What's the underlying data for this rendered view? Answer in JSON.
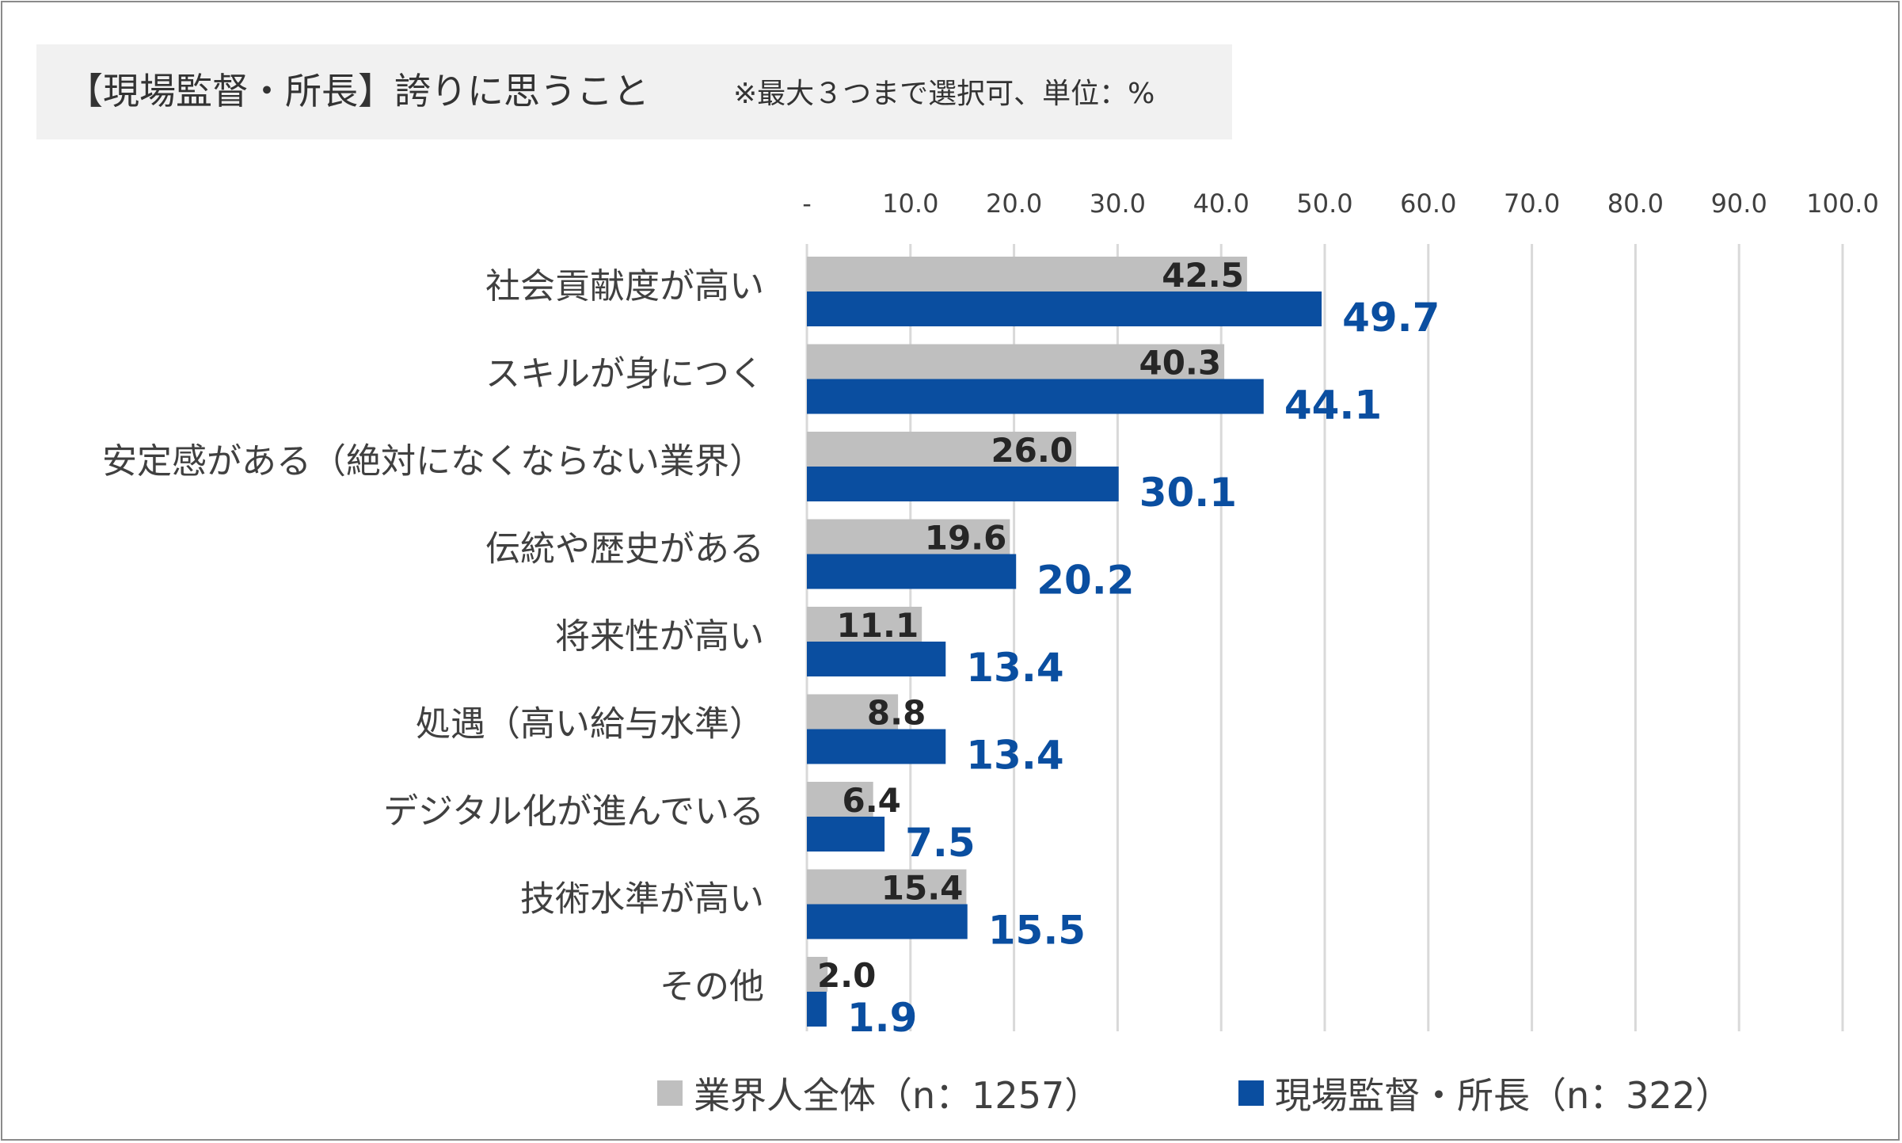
{
  "title": {
    "main": "【現場監督・所長】誇りに思うこと",
    "note": "※最大３つまで選択可、単位：%"
  },
  "colors": {
    "series_gray": "#bfbfbf",
    "series_blue": "#0a4ea0",
    "grid": "#d9d9d9"
  },
  "legend": {
    "items": [
      {
        "label": "業界人全体（n：1257）",
        "color": "#bfbfbf"
      },
      {
        "label": "現場監督・所長（n：322）",
        "color": "#0a4ea0"
      }
    ]
  },
  "chart_data": {
    "type": "bar",
    "orientation": "horizontal",
    "categories": [
      "社会貢献度が高い",
      "スキルが身につく",
      "安定感がある（絶対になくならない業界）",
      "伝統や歴史がある",
      "将来性が高い",
      "処遇（高い給与水準）",
      "デジタル化が進んでいる",
      "技術水準が高い",
      "その他"
    ],
    "series": [
      {
        "name": "業界人全体（n：1257）",
        "values": [
          42.5,
          40.3,
          26.0,
          19.6,
          11.1,
          8.8,
          6.4,
          15.4,
          2.0
        ],
        "labels": [
          "42.5",
          "40.3",
          "26.0",
          "19.6",
          "11.1",
          "8.8",
          "6.4",
          "15.4",
          "2.0"
        ]
      },
      {
        "name": "現場監督・所長（n：322）",
        "values": [
          49.7,
          44.1,
          30.1,
          20.2,
          13.4,
          13.4,
          7.5,
          15.5,
          1.9
        ],
        "labels": [
          "49.7",
          "44.1",
          "30.1",
          "20.2",
          "13.4",
          "13.4",
          "7.5",
          "15.5",
          "1.9"
        ]
      }
    ],
    "xlim": [
      0,
      100
    ],
    "ticks": [
      "-",
      "10.0",
      "20.0",
      "30.0",
      "40.0",
      "50.0",
      "60.0",
      "70.0",
      "80.0",
      "90.0",
      "100.0"
    ],
    "tick_values": [
      0,
      10,
      20,
      30,
      40,
      50,
      60,
      70,
      80,
      90,
      100
    ],
    "axis_position": "top",
    "grid": true,
    "legend_position": "bottom"
  }
}
